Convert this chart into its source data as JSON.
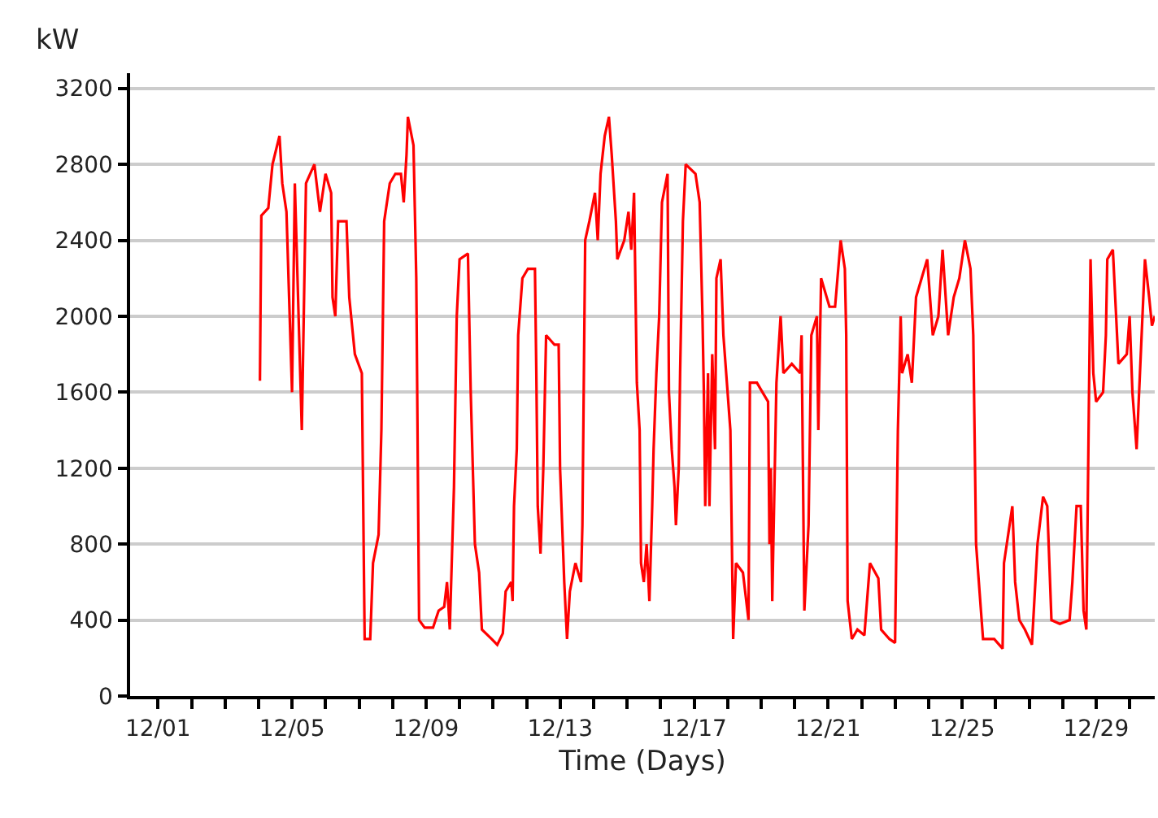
{
  "chart_data": {
    "type": "line",
    "xlabel": "Time (Days)",
    "ylabel": "kW",
    "x": [
      "--12-04T01:00",
      "--12-04T02:00",
      "--12-04T07:00",
      "--12-04T10:00",
      "--12-04T15:00",
      "--12-04T17:00",
      "--12-04T20:00",
      "--12-05T00:00",
      "--12-05T02:00",
      "--12-05T07:00",
      "--12-05T10:00",
      "--12-05T16:00",
      "--12-05T20:00",
      "--12-06T00:00",
      "--12-06T04:00",
      "--12-06T05:00",
      "--12-06T07:00",
      "--12-06T09:00",
      "--12-06T15:00",
      "--12-06T17:00",
      "--12-06T21:00",
      "--12-07T02:00",
      "--12-07T04:00",
      "--12-07T08:00",
      "--12-07T10:00",
      "--12-07T14:00",
      "--12-07T16:00",
      "--12-07T18:00",
      "--12-07T22:00",
      "--12-08T02:00",
      "--12-08T06:00",
      "--12-08T08:00",
      "--12-08T10:00",
      "--12-08T11:00",
      "--12-08T15:00",
      "--12-08T17:00",
      "--12-08T19:00",
      "--12-08T23:00",
      "--12-09T05:00",
      "--12-09T09:00",
      "--12-09T13:00",
      "--12-09T15:00",
      "--12-09T17:00",
      "--12-09T20:00",
      "--12-09T22:00",
      "--12-10T00:00",
      "--12-10T06:00",
      "--12-10T08:00",
      "--12-10T11:00",
      "--12-10T14:00",
      "--12-10T16:00",
      "--12-10T23:00",
      "--12-11T03:00",
      "--12-11T07:00",
      "--12-11T09:00",
      "--12-11T13:00",
      "--12-11T14:00",
      "--12-11T15:00",
      "--12-11T17:00",
      "--12-11T18:00",
      "--12-11T21:00",
      "--12-12T01:00",
      "--12-12T06:00",
      "--12-12T07:00",
      "--12-12T08:00",
      "--12-12T10:00",
      "--12-12T12:00",
      "--12-12T14:00",
      "--12-12T20:00",
      "--12-12T23:00",
      "--12-13T00:00",
      "--12-13T03:00",
      "--12-13T05:00",
      "--12-13T07:00",
      "--12-13T11:00",
      "--12-13T15:00",
      "--12-13T16:00",
      "--12-13T18:00",
      "--12-13T21:00",
      "--12-14T01:00",
      "--12-14T03:00",
      "--12-14T05:00",
      "--12-14T08:00",
      "--12-14T11:00",
      "--12-14T13:00",
      "--12-14T16:00",
      "--12-14T17:00",
      "--12-14T22:00",
      "--12-15T01:00",
      "--12-15T03:00",
      "--12-15T05:00",
      "--12-15T07:00",
      "--12-15T09:00",
      "--12-15T10:00",
      "--12-15T12:00",
      "--12-15T14:00",
      "--12-15T16:00",
      "--12-15T18:00",
      "--12-15T19:00",
      "--12-15T21:00",
      "--12-15T23:00",
      "--12-16T01:00",
      "--12-16T05:00",
      "--12-16T06:00",
      "--12-16T08:00",
      "--12-16T10:00",
      "--12-16T11:00",
      "--12-16T13:00",
      "--12-16T14:00",
      "--12-16T16:00",
      "--12-16T18:00",
      "--12-17T01:00",
      "--12-17T04:00",
      "--12-17T06:00",
      "--12-17T07:00",
      "--12-17T08:00",
      "--12-17T10:00",
      "--12-17T11:00",
      "--12-17T13:00",
      "--12-17T15:00",
      "--12-17T16:00",
      "--12-17T19:00",
      "--12-17T21:00",
      "--12-18T00:00",
      "--12-18T02:00",
      "--12-18T04:00",
      "--12-18T06:00",
      "--12-18T11:00",
      "--12-18T15:00",
      "--12-18T16:00",
      "--12-18T21:00",
      "--12-19T01:00",
      "--12-19T05:00",
      "--12-19T06:00",
      "--12-19T07:00",
      "--12-19T08:00",
      "--12-19T11:00",
      "--12-19T14:00",
      "--12-19T16:00",
      "--12-19T22:00",
      "--12-20T04:00",
      "--12-20T05:00",
      "--12-20T07:00",
      "--12-20T10:00",
      "--12-20T12:00",
      "--12-20T16:00",
      "--12-20T17:00",
      "--12-20T19:00",
      "--12-21T01:00",
      "--12-21T05:00",
      "--12-21T09:00",
      "--12-21T12:00",
      "--12-21T13:00",
      "--12-21T14:00",
      "--12-21T17:00",
      "--12-21T21:00",
      "--12-22T02:00",
      "--12-22T06:00",
      "--12-22T12:00",
      "--12-22T14:00",
      "--12-22T20:00",
      "--12-23T00:00",
      "--12-23T02:00",
      "--12-23T04:00",
      "--12-23T05:00",
      "--12-23T09:00",
      "--12-23T12:00",
      "--12-23T15:00",
      "--12-23T19:00",
      "--12-23T23:00",
      "--12-24T03:00",
      "--12-24T07:00",
      "--12-24T10:00",
      "--12-24T14:00",
      "--12-24T18:00",
      "--12-24T22:00",
      "--12-25T02:00",
      "--12-25T06:00",
      "--12-25T08:00",
      "--12-25T10:00",
      "--12-25T12:00",
      "--12-25T15:00",
      "--12-25T23:00",
      "--12-26T05:00",
      "--12-26T06:00",
      "--12-26T09:00",
      "--12-26T12:00",
      "--12-26T14:00",
      "--12-26T17:00",
      "--12-26T21:00",
      "--12-27T02:00",
      "--12-27T06:00",
      "--12-27T10:00",
      "--12-27T13:00",
      "--12-27T16:00",
      "--12-27T22:00",
      "--12-28T05:00",
      "--12-28T07:00",
      "--12-28T10:00",
      "--12-28T13:00",
      "--12-28T15:00",
      "--12-28T17:00",
      "--12-28T20:00",
      "--12-28T22:00",
      "--12-29T00:00",
      "--12-29T05:00",
      "--12-29T07:00",
      "--12-29T08:00",
      "--12-29T12:00",
      "--12-29T14:00",
      "--12-29T16:00",
      "--12-29T22:00",
      "--12-30T00:00",
      "--12-30T02:00",
      "--12-30T05:00",
      "--12-30T08:00",
      "--12-30T11:00",
      "--12-30T14:00",
      "--12-30T16:00",
      "--12-30T18:00"
    ],
    "series": [
      {
        "color": "#ff0000",
        "values": [
          1660,
          2530,
          2570,
          2800,
          2950,
          2700,
          2550,
          1600,
          2700,
          1400,
          2700,
          2800,
          2550,
          2750,
          2650,
          2100,
          2000,
          2500,
          2500,
          2100,
          1800,
          1700,
          300,
          300,
          700,
          850,
          1400,
          2500,
          2700,
          2750,
          2750,
          2600,
          2850,
          3050,
          2900,
          2200,
          400,
          360,
          360,
          450,
          470,
          600,
          350,
          1100,
          2000,
          2300,
          2330,
          1600,
          800,
          650,
          350,
          300,
          270,
          330,
          550,
          600,
          500,
          1000,
          1300,
          1900,
          2200,
          2250,
          2250,
          1700,
          1000,
          750,
          1200,
          1900,
          1850,
          1850,
          1200,
          600,
          300,
          550,
          700,
          600,
          900,
          2400,
          2500,
          2650,
          2400,
          2750,
          2950,
          3050,
          2850,
          2500,
          2300,
          2400,
          2550,
          2350,
          2650,
          1650,
          1400,
          700,
          600,
          800,
          500,
          1000,
          1300,
          1700,
          2000,
          2600,
          2750,
          1600,
          1300,
          1100,
          900,
          1200,
          1700,
          2500,
          2800,
          2750,
          2600,
          2000,
          1600,
          1000,
          1700,
          1000,
          1800,
          1300,
          2200,
          2300,
          1900,
          1600,
          1400,
          300,
          700,
          650,
          400,
          1650,
          1650,
          1600,
          1550,
          800,
          1200,
          500,
          1650,
          2000,
          1700,
          1750,
          1700,
          1900,
          450,
          900,
          1900,
          2000,
          1400,
          2200,
          2050,
          2050,
          2400,
          2250,
          1900,
          500,
          300,
          350,
          320,
          700,
          620,
          350,
          300,
          280,
          1400,
          2000,
          1700,
          1800,
          1650,
          2100,
          2200,
          2300,
          1900,
          2000,
          2350,
          1900,
          2100,
          2200,
          2400,
          2250,
          1900,
          800,
          600,
          300,
          300,
          250,
          700,
          850,
          1000,
          600,
          400,
          350,
          270,
          800,
          1050,
          1000,
          400,
          380,
          400,
          600,
          1000,
          1000,
          450,
          350,
          2300,
          1700,
          1550,
          1600,
          1900,
          2300,
          2350,
          2050,
          1750,
          1800,
          2000,
          1600,
          1300,
          1800,
          2300,
          2100,
          1950,
          2000
        ]
      }
    ],
    "xlim": [
      "--11-30T04:00",
      "--12-30T18:00"
    ],
    "xticks": [
      {
        "value": "--12-01",
        "label": "12/01"
      },
      {
        "value": "--12-02",
        "label": null
      },
      {
        "value": "--12-03",
        "label": null
      },
      {
        "value": "--12-04",
        "label": null
      },
      {
        "value": "--12-05",
        "label": "12/05"
      },
      {
        "value": "--12-06",
        "label": null
      },
      {
        "value": "--12-07",
        "label": null
      },
      {
        "value": "--12-08",
        "label": null
      },
      {
        "value": "--12-09",
        "label": "12/09"
      },
      {
        "value": "--12-10",
        "label": null
      },
      {
        "value": "--12-11",
        "label": null
      },
      {
        "value": "--12-12",
        "label": null
      },
      {
        "value": "--12-13",
        "label": "12/13"
      },
      {
        "value": "--12-14",
        "label": null
      },
      {
        "value": "--12-15",
        "label": null
      },
      {
        "value": "--12-16",
        "label": null
      },
      {
        "value": "--12-17",
        "label": "12/17"
      },
      {
        "value": "--12-18",
        "label": null
      },
      {
        "value": "--12-19",
        "label": null
      },
      {
        "value": "--12-20",
        "label": null
      },
      {
        "value": "--12-21",
        "label": "12/21"
      },
      {
        "value": "--12-22",
        "label": null
      },
      {
        "value": "--12-23",
        "label": null
      },
      {
        "value": "--12-24",
        "label": null
      },
      {
        "value": "--12-25",
        "label": "12/25"
      },
      {
        "value": "--12-26",
        "label": null
      },
      {
        "value": "--12-27",
        "label": null
      },
      {
        "value": "--12-28",
        "label": null
      },
      {
        "value": "--12-29",
        "label": "12/29"
      },
      {
        "value": "--12-30",
        "label": null
      }
    ],
    "ylim": [
      0,
      3280
    ],
    "yticks": [
      0,
      400,
      800,
      1200,
      1600,
      2000,
      2400,
      2800,
      3200
    ],
    "grid": "y",
    "marker": "none",
    "line_style": "solid"
  }
}
